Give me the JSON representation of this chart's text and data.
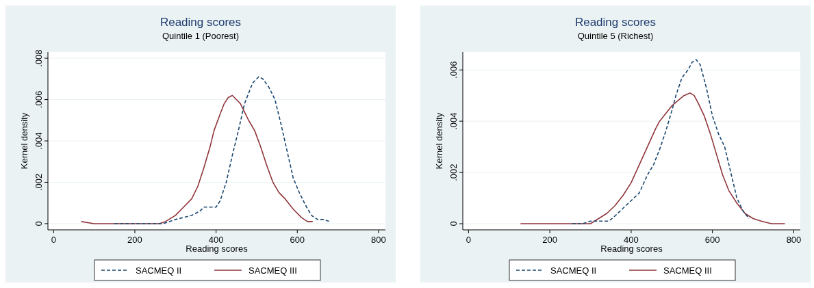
{
  "chart_data": [
    {
      "type": "line",
      "title": "Reading scores",
      "subtitle": "Quintile 1 (Poorest)",
      "xlabel": "Reading scores",
      "ylabel": "Kernel density",
      "xlim": [
        -14,
        817
      ],
      "ylim": [
        -0.0003,
        0.0083
      ],
      "xticks": [
        0,
        200,
        400,
        600,
        800
      ],
      "yticks": [
        0,
        {
          "value": 0.002,
          "label": ".002"
        },
        {
          "value": 0.004,
          "label": ".004"
        },
        {
          "value": 0.006,
          "label": ".006"
        },
        {
          "value": 0.008,
          "label": ".008"
        }
      ],
      "grid": "y",
      "legend": "bottom",
      "series": [
        {
          "name": "SACMEQ II",
          "color": "#1a476f",
          "line_style": "dashed",
          "x": [
            150,
            200,
            240,
            270,
            300,
            340,
            360,
            370,
            385,
            400,
            410,
            425,
            440,
            455,
            470,
            480,
            490,
            505,
            515,
            530,
            545,
            560,
            575,
            590,
            605,
            620,
            635,
            650,
            665,
            680
          ],
          "values": [
            0,
            0,
            0,
            0,
            0.0002,
            0.0004,
            0.0006,
            0.0008,
            0.0008,
            0.0008,
            0.0011,
            0.002,
            0.0033,
            0.0045,
            0.0058,
            0.0063,
            0.0068,
            0.0071,
            0.007,
            0.0066,
            0.006,
            0.0048,
            0.0035,
            0.0022,
            0.0015,
            0.0009,
            0.0004,
            0.0002,
            0.0002,
            0.0001
          ]
        },
        {
          "name": "SACMEQ III",
          "color": "#90353b",
          "line_style": "solid",
          "x": [
            68,
            100,
            140,
            160,
            200,
            260,
            275,
            300,
            320,
            340,
            355,
            370,
            385,
            395,
            410,
            420,
            430,
            440,
            450,
            460,
            470,
            480,
            495,
            510,
            525,
            540,
            555,
            570,
            590,
            610,
            625,
            638
          ],
          "values": [
            0.0001,
            0,
            0,
            0,
            0,
            0,
            0.0001,
            0.0004,
            0.0008,
            0.0012,
            0.0018,
            0.0027,
            0.0037,
            0.0045,
            0.0053,
            0.0058,
            0.0061,
            0.0062,
            0.006,
            0.0058,
            0.0054,
            0.005,
            0.0045,
            0.0037,
            0.0028,
            0.002,
            0.0015,
            0.0012,
            0.0007,
            0.0003,
            0.0001,
            0.0001
          ]
        }
      ]
    },
    {
      "type": "line",
      "title": "Reading scores",
      "subtitle": "Quintile 5 (Richest)",
      "xlabel": "Reading scores",
      "ylabel": "Kernel density",
      "xlim": [
        -14,
        816
      ],
      "ylim": [
        -0.00024,
        0.0067
      ],
      "xticks": [
        0,
        200,
        400,
        600,
        800
      ],
      "yticks": [
        0,
        {
          "value": 0.002,
          "label": ".002"
        },
        {
          "value": 0.004,
          "label": ".004"
        },
        {
          "value": 0.006,
          "label": ".006"
        }
      ],
      "grid": "y",
      "legend": "bottom",
      "series": [
        {
          "name": "SACMEQ II",
          "color": "#1a476f",
          "line_style": "dashed",
          "x": [
            255,
            280,
            300,
            320,
            345,
            360,
            380,
            400,
            420,
            440,
            455,
            470,
            485,
            500,
            510,
            525,
            540,
            550,
            560,
            570,
            585,
            600,
            615,
            630,
            645,
            660,
            675,
            690
          ],
          "values": [
            0,
            0,
            0.0001,
            0.0001,
            0.0001,
            0.0003,
            0.0006,
            0.0009,
            0.0012,
            0.0019,
            0.0023,
            0.0029,
            0.0036,
            0.0044,
            0.005,
            0.0057,
            0.006,
            0.0063,
            0.0064,
            0.0062,
            0.0053,
            0.0042,
            0.0035,
            0.003,
            0.002,
            0.001,
            0.0005,
            0.0002
          ]
        },
        {
          "name": "SACMEQ III",
          "color": "#90353b",
          "line_style": "solid",
          "x": [
            128,
            160,
            200,
            280,
            300,
            320,
            340,
            360,
            380,
            400,
            420,
            440,
            460,
            470,
            485,
            500,
            515,
            530,
            545,
            555,
            565,
            580,
            595,
            610,
            625,
            640,
            660,
            680,
            700,
            720,
            745,
            778
          ],
          "values": [
            0,
            0,
            0,
            0,
            0,
            0.0002,
            0.0004,
            0.0007,
            0.0011,
            0.0016,
            0.0023,
            0.003,
            0.0037,
            0.004,
            0.0043,
            0.0046,
            0.0048,
            0.005,
            0.0051,
            0.005,
            0.0047,
            0.0042,
            0.0035,
            0.0027,
            0.0019,
            0.0013,
            0.0008,
            0.0004,
            0.0002,
            0.0001,
            0,
            0
          ]
        }
      ]
    }
  ]
}
